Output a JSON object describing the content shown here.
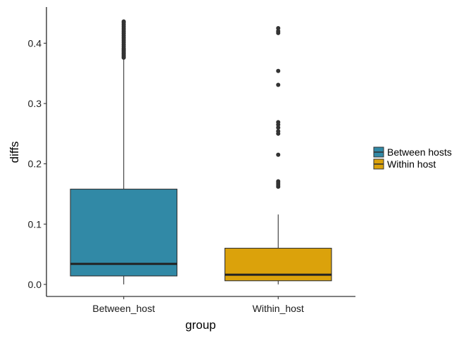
{
  "chart_data": {
    "type": "boxplot",
    "xlabel": "group",
    "ylabel": "diffs",
    "ylim": [
      -0.02,
      0.46
    ],
    "yticks": [
      {
        "value": 0.0,
        "label": "0.0"
      },
      {
        "value": 0.1,
        "label": "0.1"
      },
      {
        "value": 0.2,
        "label": "0.2"
      },
      {
        "value": 0.3,
        "label": "0.3"
      },
      {
        "value": 0.4,
        "label": "0.4"
      }
    ],
    "grid": false,
    "legend_position": "right",
    "legend": [
      {
        "label": "Between hosts",
        "color": "#3189A6"
      },
      {
        "label": "Within host",
        "color": "#DBA20B"
      }
    ],
    "categories": [
      "Between_host",
      "Within_host"
    ],
    "boxes": [
      {
        "category": "Between_host",
        "color": "#3189A6",
        "whisker_low": 0.0,
        "q1": 0.014,
        "median": 0.034,
        "q3": 0.158,
        "whisker_high": 0.374,
        "outliers": [
          0.376,
          0.378,
          0.38,
          0.382,
          0.384,
          0.386,
          0.388,
          0.39,
          0.392,
          0.395,
          0.398,
          0.401,
          0.404,
          0.407,
          0.41,
          0.413,
          0.416,
          0.419,
          0.422,
          0.425,
          0.428,
          0.431,
          0.434,
          0.436
        ]
      },
      {
        "category": "Within_host",
        "color": "#DBA20B",
        "whisker_low": 0.0,
        "q1": 0.006,
        "median": 0.016,
        "q3": 0.06,
        "whisker_high": 0.116,
        "outliers": [
          0.162,
          0.165,
          0.168,
          0.171,
          0.215,
          0.25,
          0.254,
          0.26,
          0.265,
          0.269,
          0.331,
          0.354,
          0.417,
          0.42,
          0.425
        ]
      }
    ]
  }
}
